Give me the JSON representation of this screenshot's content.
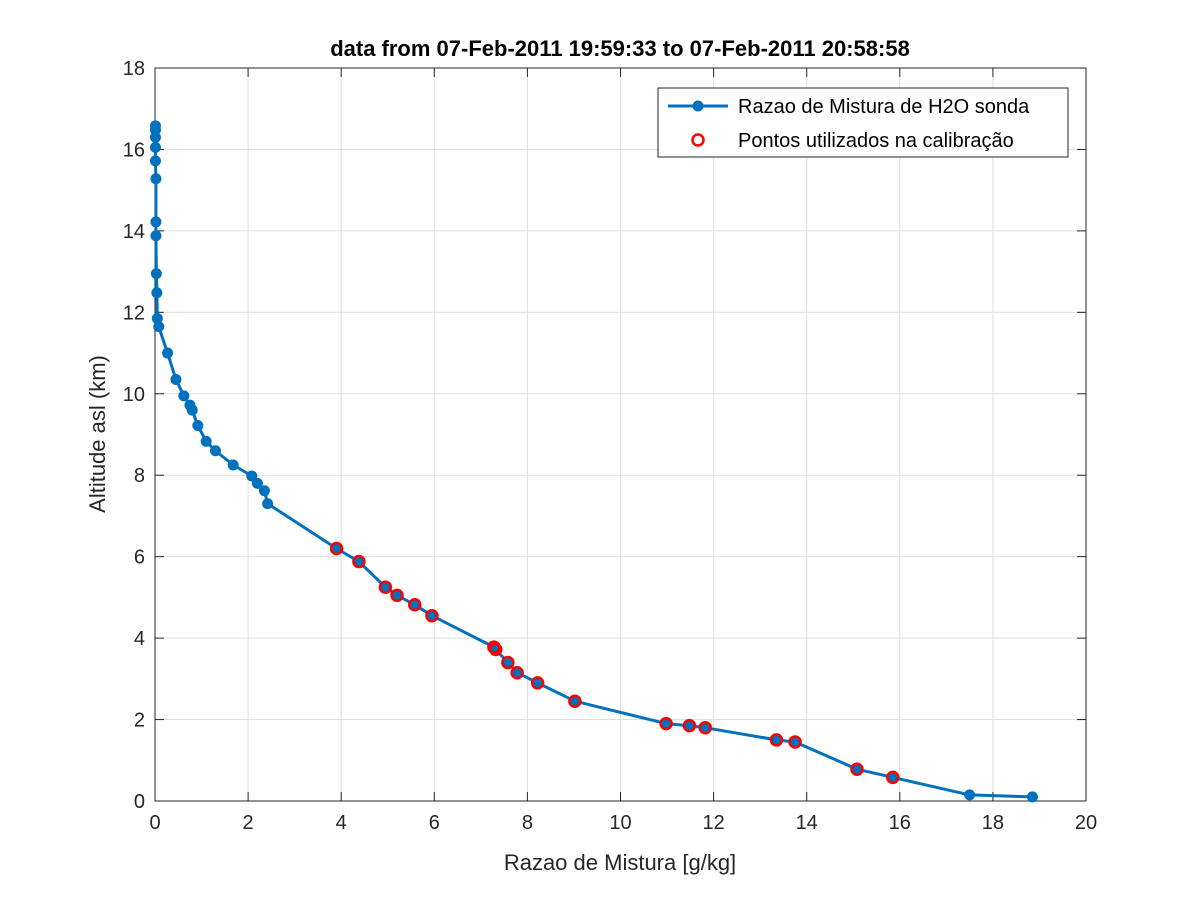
{
  "chart_data": {
    "type": "line",
    "title": "data from 07-Feb-2011 19:59:33 to 07-Feb-2011 20:58:58",
    "xlabel": "Razao de Mistura [g/kg]",
    "ylabel": "Altitude asl (km)",
    "xlim": [
      0,
      20
    ],
    "ylim": [
      0,
      18
    ],
    "xticks": [
      0,
      2,
      4,
      6,
      8,
      10,
      12,
      14,
      16,
      18,
      20
    ],
    "yticks": [
      0,
      2,
      4,
      6,
      8,
      10,
      12,
      14,
      16,
      18
    ],
    "grid": true,
    "legend_position": "top-right",
    "colors": {
      "line": "#0072BD",
      "calibration": "#FF0000",
      "grid": "#DFDFDF",
      "axis": "#262626"
    },
    "series": [
      {
        "name": "Razao de Mistura de H2O sonda",
        "style": "line-with-markers",
        "x": [
          18.85,
          17.5,
          15.85,
          15.08,
          13.75,
          13.35,
          11.82,
          11.48,
          10.98,
          9.02,
          8.22,
          7.78,
          7.58,
          7.32,
          7.28,
          5.95,
          5.58,
          5.2,
          4.95,
          4.38,
          3.9,
          2.42,
          2.35,
          2.2,
          2.08,
          1.68,
          1.3,
          1.1,
          0.92,
          0.8,
          0.75,
          0.62,
          0.45,
          0.27,
          0.08,
          0.05,
          0.04,
          0.03,
          0.02,
          0.02,
          0.02,
          0.01,
          0.01,
          0.01,
          0.01,
          0.01
        ],
        "y": [
          0.1,
          0.15,
          0.58,
          0.78,
          1.45,
          1.5,
          1.8,
          1.85,
          1.9,
          2.45,
          2.9,
          3.15,
          3.4,
          3.72,
          3.78,
          4.55,
          4.82,
          5.05,
          5.25,
          5.88,
          6.2,
          7.3,
          7.62,
          7.8,
          7.98,
          8.25,
          8.6,
          8.83,
          9.22,
          9.6,
          9.72,
          9.95,
          10.35,
          11.0,
          11.65,
          11.85,
          12.48,
          12.95,
          13.88,
          14.22,
          15.28,
          15.72,
          16.05,
          16.3,
          16.48,
          16.58
        ]
      },
      {
        "name": "Pontos utilizados na calibração",
        "style": "markers",
        "x": [
          15.85,
          15.08,
          13.75,
          13.35,
          11.82,
          11.48,
          10.98,
          9.02,
          8.22,
          7.78,
          7.58,
          7.32,
          7.28,
          5.95,
          5.58,
          5.2,
          4.95,
          4.38,
          3.9
        ],
        "y": [
          0.58,
          0.78,
          1.45,
          1.5,
          1.8,
          1.85,
          1.9,
          2.45,
          2.9,
          3.15,
          3.4,
          3.72,
          3.78,
          4.55,
          4.82,
          5.05,
          5.25,
          5.88,
          6.2
        ]
      }
    ]
  }
}
